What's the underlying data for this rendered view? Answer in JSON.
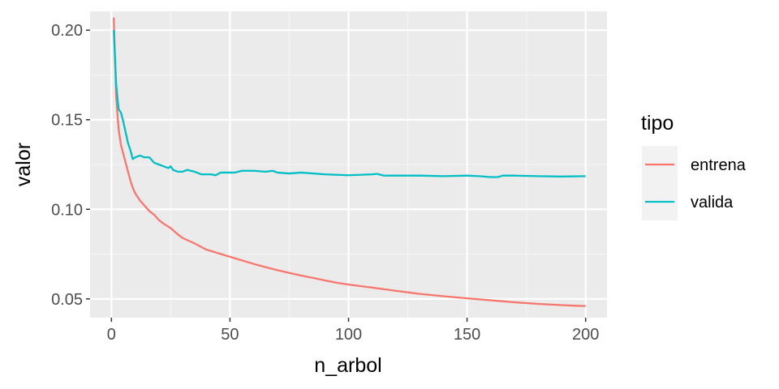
{
  "chart_data": {
    "type": "line",
    "xlabel": "n_arbol",
    "ylabel": "valor",
    "xlim": [
      -9,
      209
    ],
    "ylim": [
      0.0395,
      0.2105
    ],
    "x_ticks": [
      0,
      50,
      100,
      150,
      200
    ],
    "x_tick_labels": [
      "0",
      "50",
      "100",
      "150",
      "200"
    ],
    "y_ticks": [
      0.05,
      0.1,
      0.15,
      0.2
    ],
    "y_tick_labels": [
      "0.05",
      "0.10",
      "0.15",
      "0.20"
    ],
    "grid": true,
    "legend": {
      "title": "tipo",
      "position": "right"
    },
    "series": [
      {
        "name": "entrena",
        "color": "#F8766D",
        "points": [
          [
            1,
            0.207
          ],
          [
            2,
            0.163
          ],
          [
            3,
            0.145
          ],
          [
            4,
            0.136
          ],
          [
            5,
            0.131
          ],
          [
            6,
            0.126
          ],
          [
            7,
            0.121
          ],
          [
            8,
            0.116
          ],
          [
            9,
            0.112
          ],
          [
            10,
            0.109
          ],
          [
            12,
            0.105
          ],
          [
            14,
            0.102
          ],
          [
            16,
            0.099
          ],
          [
            18,
            0.097
          ],
          [
            20,
            0.094
          ],
          [
            22,
            0.092
          ],
          [
            25,
            0.0895
          ],
          [
            28,
            0.086
          ],
          [
            30,
            0.084
          ],
          [
            35,
            0.081
          ],
          [
            40,
            0.0775
          ],
          [
            45,
            0.0755
          ],
          [
            50,
            0.0735
          ],
          [
            55,
            0.0715
          ],
          [
            60,
            0.0695
          ],
          [
            65,
            0.0677
          ],
          [
            70,
            0.066
          ],
          [
            75,
            0.0645
          ],
          [
            80,
            0.063
          ],
          [
            85,
            0.0617
          ],
          [
            90,
            0.0603
          ],
          [
            95,
            0.059
          ],
          [
            100,
            0.058
          ],
          [
            110,
            0.0563
          ],
          [
            120,
            0.0545
          ],
          [
            130,
            0.0528
          ],
          [
            140,
            0.0515
          ],
          [
            150,
            0.0503
          ],
          [
            160,
            0.0492
          ],
          [
            170,
            0.0481
          ],
          [
            180,
            0.0472
          ],
          [
            190,
            0.0465
          ],
          [
            195,
            0.0462
          ],
          [
            200,
            0.046
          ]
        ]
      },
      {
        "name": "valida",
        "color": "#00BFC4",
        "points": [
          [
            1,
            0.2
          ],
          [
            2,
            0.17
          ],
          [
            3,
            0.156
          ],
          [
            4,
            0.154
          ],
          [
            5,
            0.149
          ],
          [
            6,
            0.143
          ],
          [
            7,
            0.137
          ],
          [
            8,
            0.133
          ],
          [
            9,
            0.128
          ],
          [
            10,
            0.129
          ],
          [
            12,
            0.13
          ],
          [
            14,
            0.129
          ],
          [
            16,
            0.129
          ],
          [
            18,
            0.126
          ],
          [
            20,
            0.125
          ],
          [
            22,
            0.124
          ],
          [
            24,
            0.123
          ],
          [
            25,
            0.124
          ],
          [
            26,
            0.122
          ],
          [
            28,
            0.121
          ],
          [
            30,
            0.121
          ],
          [
            32,
            0.122
          ],
          [
            35,
            0.121
          ],
          [
            38,
            0.1195
          ],
          [
            42,
            0.1195
          ],
          [
            44,
            0.119
          ],
          [
            46,
            0.1205
          ],
          [
            50,
            0.1205
          ],
          [
            52,
            0.1205
          ],
          [
            55,
            0.1215
          ],
          [
            60,
            0.1215
          ],
          [
            65,
            0.121
          ],
          [
            68,
            0.1215
          ],
          [
            70,
            0.1205
          ],
          [
            75,
            0.12
          ],
          [
            80,
            0.1205
          ],
          [
            90,
            0.1195
          ],
          [
            100,
            0.119
          ],
          [
            110,
            0.1195
          ],
          [
            112,
            0.1198
          ],
          [
            115,
            0.1188
          ],
          [
            120,
            0.1188
          ],
          [
            130,
            0.1188
          ],
          [
            140,
            0.1185
          ],
          [
            150,
            0.1188
          ],
          [
            155,
            0.1185
          ],
          [
            160,
            0.118
          ],
          [
            163,
            0.118
          ],
          [
            165,
            0.1188
          ],
          [
            170,
            0.1188
          ],
          [
            180,
            0.1185
          ],
          [
            190,
            0.1183
          ],
          [
            200,
            0.1185
          ]
        ]
      }
    ]
  }
}
